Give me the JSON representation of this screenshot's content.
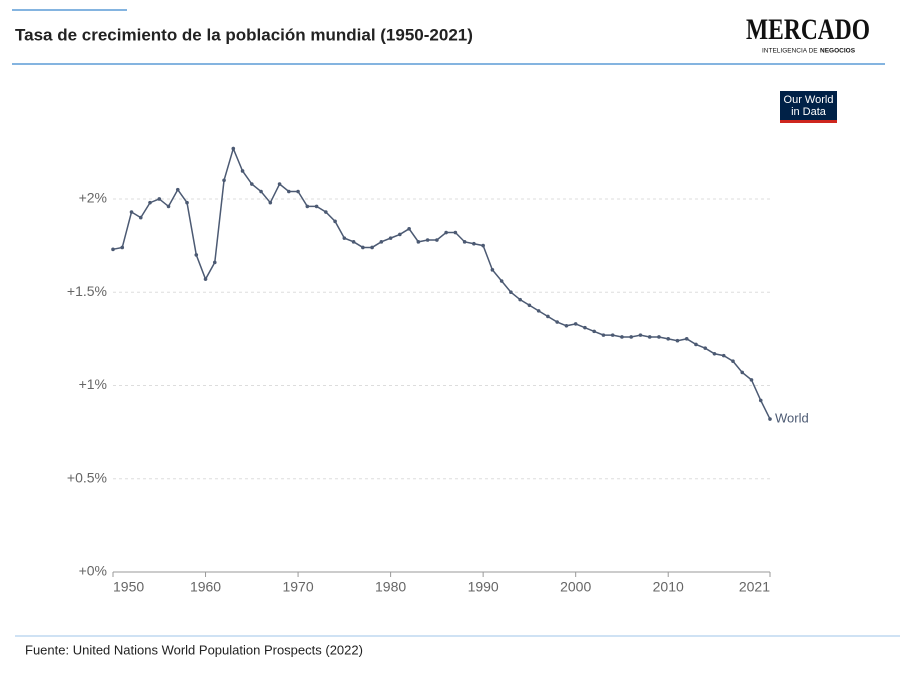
{
  "chart_data": {
    "type": "line",
    "title": "Tasa de crecimiento de la población mundial (1950-2021)",
    "source": "Fuente: United Nations World Population Prospects (2022)",
    "logo": {
      "name": "MERCADO",
      "tagline": "INTELIGENCIA DE",
      "tagline_bold": "NEGOCIOS"
    },
    "badge": [
      "Our World",
      "in Data"
    ],
    "x": [
      1950,
      1951,
      1952,
      1953,
      1954,
      1955,
      1956,
      1957,
      1958,
      1959,
      1960,
      1961,
      1962,
      1963,
      1964,
      1965,
      1966,
      1967,
      1968,
      1969,
      1970,
      1971,
      1972,
      1973,
      1974,
      1975,
      1976,
      1977,
      1978,
      1979,
      1980,
      1981,
      1982,
      1983,
      1984,
      1985,
      1986,
      1987,
      1988,
      1989,
      1990,
      1991,
      1992,
      1993,
      1994,
      1995,
      1996,
      1997,
      1998,
      1999,
      2000,
      2001,
      2002,
      2003,
      2004,
      2005,
      2006,
      2007,
      2008,
      2009,
      2010,
      2011,
      2012,
      2013,
      2014,
      2015,
      2016,
      2017,
      2018,
      2019,
      2020,
      2021
    ],
    "series": [
      {
        "name": "World",
        "color": "#4c5a73",
        "values": [
          1.73,
          1.74,
          1.93,
          1.9,
          1.98,
          2.0,
          1.96,
          2.05,
          1.98,
          1.7,
          1.57,
          1.66,
          2.1,
          2.27,
          2.15,
          2.08,
          2.04,
          1.98,
          2.08,
          2.04,
          2.04,
          1.96,
          1.96,
          1.93,
          1.88,
          1.79,
          1.77,
          1.74,
          1.74,
          1.77,
          1.79,
          1.81,
          1.84,
          1.77,
          1.78,
          1.78,
          1.82,
          1.82,
          1.77,
          1.76,
          1.75,
          1.62,
          1.56,
          1.5,
          1.46,
          1.43,
          1.4,
          1.37,
          1.34,
          1.32,
          1.33,
          1.31,
          1.29,
          1.27,
          1.27,
          1.26,
          1.26,
          1.27,
          1.26,
          1.26,
          1.25,
          1.24,
          1.25,
          1.22,
          1.2,
          1.17,
          1.16,
          1.13,
          1.07,
          1.03,
          0.92,
          0.82
        ]
      }
    ],
    "xlim": [
      1950,
      2021
    ],
    "xticks": [
      1950,
      1960,
      1970,
      1980,
      1990,
      2000,
      2010,
      2021
    ],
    "ylim": [
      0,
      2.3
    ],
    "yticks": [
      {
        "value": 0,
        "label": "+0%"
      },
      {
        "value": 0.5,
        "label": "+0.5%"
      },
      {
        "value": 1,
        "label": "+1%"
      },
      {
        "value": 1.5,
        "label": "+1.5%"
      },
      {
        "value": 2,
        "label": "+2%"
      }
    ],
    "grid": true
  }
}
